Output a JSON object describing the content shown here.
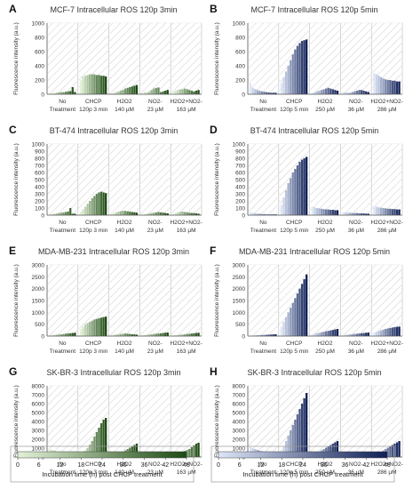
{
  "colors": {
    "green_light": "#e3f2d8",
    "green_dark": "#1d4a12",
    "blue_light": "#dde6f7",
    "blue_dark": "#0f1f55",
    "hatch": "#c8c8c8",
    "grid": "#d9d9d9",
    "axis": "#555555"
  },
  "y_axis_label": "Fluorescence intensity (a.u.)",
  "group_labels": {
    "green": [
      [
        "No",
        "Treatment"
      ],
      [
        "CHCP",
        "120p 3 min"
      ],
      [
        "H2O2",
        "140 µM"
      ],
      [
        "NO2-",
        "23 µM"
      ],
      [
        "H2O2+NO2-",
        "163 µM"
      ]
    ],
    "blue": [
      [
        "No",
        "Treatment"
      ],
      [
        "CHCP",
        "120p 5 min"
      ],
      [
        "H2O2",
        "250 µM"
      ],
      [
        "NO2-",
        "36 µM"
      ],
      [
        "H2O2+NO2-",
        "286 µM"
      ]
    ]
  },
  "colorbars": [
    {
      "palette": "green",
      "ticks": [
        "0",
        "6",
        "12",
        "18",
        "24",
        "30",
        "36",
        "42",
        "48"
      ],
      "label": "Incubation time (h) post CHCP treatment"
    },
    {
      "palette": "blue",
      "ticks": [
        "0",
        "6",
        "12",
        "18",
        "24",
        "30",
        "36",
        "42",
        "48"
      ],
      "label": "Incubation time (h) post CHCP treatment"
    }
  ],
  "chart_data": [
    {
      "panel": "A",
      "title": "MCF-7 Intracellular ROS 120p 3min",
      "type": "bar",
      "palette": "green",
      "ylim": [
        0,
        1000
      ],
      "yticks": [
        0,
        200,
        400,
        600,
        800,
        1000
      ],
      "categories": [
        "No Treatment",
        "CHCP 120p 3 min",
        "H2O2 140 µM",
        "NO2- 23 µM",
        "H2O2+NO2- 163 µM"
      ],
      "series": [
        {
          "values": [
            [
              5,
              10,
              15,
              20,
              25,
              30,
              30,
              35,
              40,
              45,
              100,
              30
            ],
            [
              200,
              250,
              260,
              270,
              280,
              280,
              280,
              270,
              270,
              260,
              260,
              250
            ],
            [
              10,
              20,
              30,
              40,
              50,
              60,
              80,
              90,
              100,
              110,
              120,
              130
            ],
            [
              20,
              30,
              25,
              40,
              60,
              80,
              90,
              95,
              30,
              40,
              50,
              60
            ],
            [
              40,
              50,
              60,
              70,
              70,
              80,
              70,
              60,
              50,
              40,
              50,
              60
            ]
          ]
        }
      ]
    },
    {
      "panel": "B",
      "title": "MCF-7 Intracellular ROS 120p 5min",
      "type": "bar",
      "palette": "blue",
      "ylim": [
        0,
        1000
      ],
      "yticks": [
        0,
        200,
        400,
        600,
        800,
        1000
      ],
      "categories": [
        "No Treatment",
        "CHCP 120p 5 min",
        "H2O2 250 µM",
        "NO2- 36 µM",
        "H2O2+NO2- 286 µM"
      ],
      "series": [
        {
          "values": [
            [
              150,
              90,
              70,
              60,
              50,
              40,
              35,
              30,
              25,
              20,
              20,
              20
            ],
            [
              160,
              240,
              320,
              400,
              480,
              560,
              630,
              680,
              720,
              750,
              760,
              770
            ],
            [
              20,
              30,
              40,
              50,
              60,
              70,
              80,
              90,
              80,
              70,
              60,
              50
            ],
            [
              30,
              30,
              20,
              20,
              30,
              40,
              50,
              60,
              60,
              50,
              40,
              30
            ],
            [
              300,
              280,
              260,
              240,
              220,
              210,
              200,
              200,
              190,
              190,
              180,
              180
            ]
          ]
        }
      ]
    },
    {
      "panel": "C",
      "title": "BT-474 Intracellular ROS 120p 3min",
      "type": "bar",
      "palette": "green",
      "ylim": [
        0,
        1000
      ],
      "yticks": [
        0,
        100,
        200,
        300,
        400,
        500,
        600,
        700,
        800,
        900,
        1000
      ],
      "categories": [
        "No Treatment",
        "CHCP 120p 3 min",
        "H2O2 140 µM",
        "NO2- 23 µM",
        "H2O2+NO2- 163 µM"
      ],
      "series": [
        {
          "values": [
            [
              10,
              15,
              20,
              25,
              30,
              35,
              40,
              45,
              50,
              100,
              20,
              20
            ],
            [
              50,
              80,
              120,
              160,
              200,
              240,
              270,
              300,
              320,
              330,
              320,
              310
            ],
            [
              20,
              30,
              40,
              50,
              55,
              60,
              60,
              55,
              50,
              45,
              40,
              35
            ],
            [
              10,
              15,
              20,
              25,
              30,
              35,
              40,
              45,
              40,
              35,
              30,
              25
            ],
            [
              20,
              30,
              40,
              45,
              50,
              45,
              40,
              35,
              30,
              30,
              25,
              20
            ]
          ]
        }
      ]
    },
    {
      "panel": "D",
      "title": "BT-474 Intracellular ROS 120p 5min",
      "type": "bar",
      "palette": "blue",
      "ylim": [
        0,
        1000
      ],
      "yticks": [
        0,
        100,
        200,
        300,
        400,
        500,
        600,
        700,
        800,
        900,
        1000
      ],
      "categories": [
        "No Treatment",
        "CHCP 120p 5 min",
        "H2O2 250 µM",
        "NO2- 36 µM",
        "H2O2+NO2- 286 µM"
      ],
      "series": [
        {
          "values": [
            [
              40,
              30,
              25,
              20,
              20,
              15,
              15,
              10,
              10,
              10,
              10,
              10
            ],
            [
              150,
              250,
              350,
              450,
              520,
              600,
              650,
              700,
              750,
              780,
              800,
              820
            ],
            [
              120,
              110,
              100,
              95,
              90,
              85,
              80,
              80,
              75,
              75,
              70,
              70
            ],
            [
              40,
              40,
              35,
              35,
              30,
              30,
              30,
              25,
              25,
              25,
              20,
              20
            ],
            [
              130,
              120,
              110,
              105,
              100,
              95,
              90,
              90,
              85,
              85,
              80,
              80
            ]
          ]
        }
      ]
    },
    {
      "panel": "E",
      "title": "MDA-MB-231 Intracellular ROS 120p 3min",
      "type": "bar",
      "palette": "green",
      "ylim": [
        0,
        3000
      ],
      "yticks": [
        0,
        500,
        1000,
        1500,
        2000,
        2500,
        3000
      ],
      "categories": [
        "No Treatment",
        "CHCP 120p 3 min",
        "H2O2 140 µM",
        "NO2- 23 µM",
        "H2O2+NO2- 163 µM"
      ],
      "series": [
        {
          "values": [
            [
              30,
              40,
              50,
              60,
              70,
              80,
              90,
              100,
              110,
              120,
              130,
              140
            ],
            [
              300,
              400,
              500,
              550,
              600,
              650,
              700,
              720,
              750,
              780,
              800,
              820
            ],
            [
              50,
              60,
              70,
              80,
              90,
              100,
              110,
              100,
              90,
              80,
              70,
              60
            ],
            [
              40,
              50,
              60,
              70,
              80,
              90,
              100,
              110,
              120,
              130,
              140,
              150
            ],
            [
              30,
              40,
              50,
              60,
              70,
              80,
              90,
              100,
              110,
              120,
              130,
              140
            ]
          ]
        }
      ]
    },
    {
      "panel": "F",
      "title": "MDA-MB-231 Intracellular ROS 120p 5min",
      "type": "bar",
      "palette": "blue",
      "ylim": [
        0,
        3000
      ],
      "yticks": [
        0,
        500,
        1000,
        1500,
        2000,
        2500,
        3000
      ],
      "categories": [
        "No Treatment",
        "CHCP 120p 5 min",
        "H2O2 250 µM",
        "NO2- 36 µM",
        "H2O2+NO2- 286 µM"
      ],
      "series": [
        {
          "values": [
            [
              20,
              25,
              30,
              35,
              40,
              45,
              50,
              55,
              60,
              65,
              70,
              75
            ],
            [
              400,
              600,
              800,
              1000,
              1200,
              1400,
              1600,
              1800,
              2000,
              2200,
              2400,
              2600
            ],
            [
              80,
              100,
              120,
              140,
              160,
              180,
              200,
              220,
              240,
              260,
              280,
              300
            ],
            [
              40,
              50,
              60,
              70,
              80,
              90,
              100,
              110,
              120,
              130,
              140,
              150
            ],
            [
              150,
              180,
              210,
              240,
              270,
              300,
              320,
              340,
              360,
              380,
              390,
              400
            ]
          ]
        }
      ]
    },
    {
      "panel": "G",
      "title": "SK-BR-3 Intracellular ROS 120p 3min",
      "type": "bar",
      "palette": "green",
      "ylim": [
        0,
        8000
      ],
      "yticks": [
        0,
        1000,
        2000,
        3000,
        4000,
        5000,
        6000,
        7000,
        8000
      ],
      "categories": [
        "No Treatment",
        "CHCP 120p 3 min",
        "H2O2 140 µM",
        "NO2- 23 µM",
        "H2O2+NO2- 163 µM"
      ],
      "series": [
        {
          "values": [
            [
              900,
              800,
              700,
              600,
              550,
              500,
              450,
              400,
              380,
              360,
              340,
              320
            ],
            [
              200,
              400,
              700,
              1000,
              1400,
              1800,
              2300,
              2800,
              3300,
              3800,
              4200,
              4400
            ],
            [
              150,
              200,
              300,
              400,
              500,
              600,
              750,
              900,
              1050,
              1200,
              1350,
              1500
            ],
            [
              150,
              180,
              210,
              240,
              270,
              300,
              330,
              360,
              390,
              420,
              450,
              480
            ],
            [
              200,
              300,
              400,
              500,
              600,
              700,
              800,
              900,
              1100,
              1300,
              1500,
              1600
            ]
          ]
        }
      ]
    },
    {
      "panel": "H",
      "title": "SK-BR-3 Intracellular ROS 120p 5min",
      "type": "bar",
      "palette": "blue",
      "ylim": [
        0,
        8000
      ],
      "yticks": [
        0,
        1000,
        2000,
        3000,
        4000,
        5000,
        6000,
        7000,
        8000
      ],
      "categories": [
        "No Treatment",
        "CHCP 120p 5 min",
        "H2O2 250 µM",
        "NO2- 36 µM",
        "H2O2+NO2- 286 µM"
      ],
      "series": [
        {
          "values": [
            [
              1200,
              1000,
              900,
              800,
              700,
              650,
              600,
              550,
              500,
              450,
              420,
              400
            ],
            [
              600,
              1200,
              1800,
              2400,
              3000,
              3600,
              4200,
              4800,
              5400,
              6000,
              6600,
              7200
            ],
            [
              200,
              300,
              450,
              600,
              750,
              900,
              1050,
              1200,
              1350,
              1500,
              1650,
              1800
            ],
            [
              100,
              120,
              140,
              160,
              180,
              200,
              220,
              240,
              260,
              280,
              300,
              320
            ],
            [
              150,
              300,
              450,
              600,
              750,
              900,
              1050,
              1200,
              1350,
              1500,
              1650,
              1800
            ]
          ]
        }
      ]
    }
  ]
}
